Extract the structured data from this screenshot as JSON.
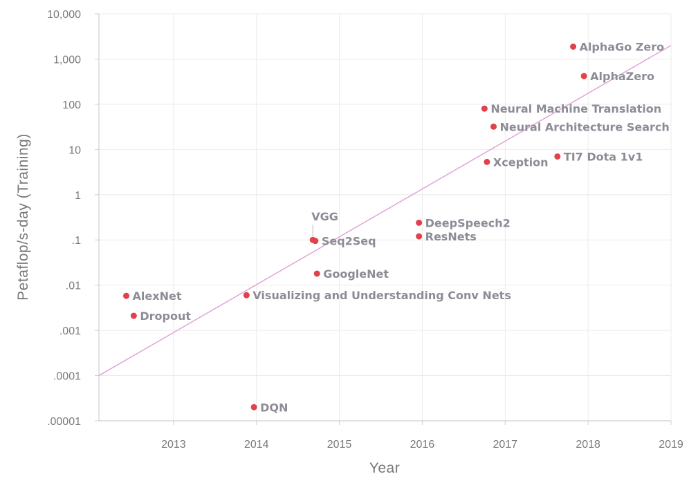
{
  "chart_data": {
    "type": "scatter",
    "title": "",
    "xlabel": "Year",
    "ylabel": "Petaflop/s-day (Training)",
    "x_scale": "linear",
    "y_scale": "log",
    "xlim": [
      2012.1,
      2019
    ],
    "ylim": [
      1e-05,
      10000
    ],
    "grid": true,
    "x_ticks": [
      "2013",
      "2014",
      "2015",
      "2016",
      "2017",
      "2018",
      "2019"
    ],
    "y_ticks": [
      ".00001",
      ".0001",
      ".001",
      ".01",
      ".1",
      "1",
      "10",
      "100",
      "1,000",
      "10,000"
    ],
    "points_color": "#e0414a",
    "trend_color": "#e2a3d8",
    "points": [
      {
        "label": "AlexNet",
        "x": 2012.43,
        "y": 0.0058
      },
      {
        "label": "Dropout",
        "x": 2012.52,
        "y": 0.0021
      },
      {
        "label": "Visualizing and Understanding Conv Nets",
        "x": 2013.88,
        "y": 0.006
      },
      {
        "label": "DQN",
        "x": 2013.97,
        "y": 2e-05
      },
      {
        "label": "VGG",
        "x": 2014.68,
        "y": 0.1
      },
      {
        "label": "Seq2Seq",
        "x": 2014.71,
        "y": 0.095
      },
      {
        "label": "GoogleNet",
        "x": 2014.73,
        "y": 0.018
      },
      {
        "label": "DeepSpeech2",
        "x": 2015.96,
        "y": 0.24
      },
      {
        "label": "ResNets",
        "x": 2015.96,
        "y": 0.12
      },
      {
        "label": "Neural Machine Translation",
        "x": 2016.75,
        "y": 80
      },
      {
        "label": "Neural Architecture Search",
        "x": 2016.86,
        "y": 32
      },
      {
        "label": "Xception",
        "x": 2016.78,
        "y": 5.3
      },
      {
        "label": "TI7 Dota 1v1",
        "x": 2017.63,
        "y": 7
      },
      {
        "label": "AlphaGo Zero",
        "x": 2017.82,
        "y": 1880
      },
      {
        "label": "AlphaZero",
        "x": 2017.95,
        "y": 420
      }
    ],
    "trend_line": {
      "start": [
        2012.1,
        0.0001
      ],
      "end": [
        2019,
        2000
      ]
    }
  }
}
